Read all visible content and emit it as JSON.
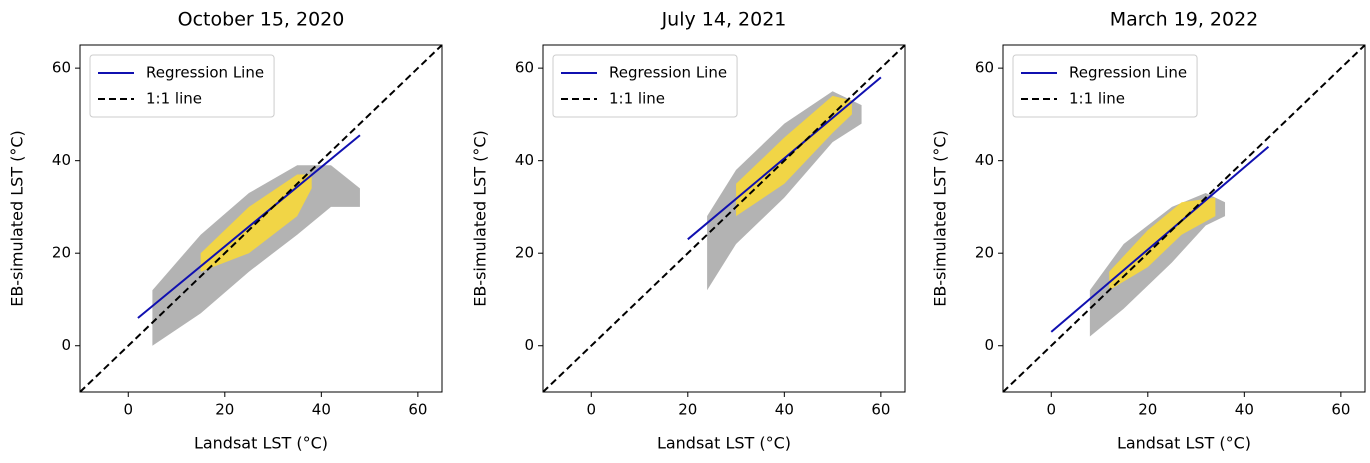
{
  "chart_data": [
    {
      "type": "scatter",
      "title": "October 15, 2020",
      "x_label": "Landsat LST (°C)",
      "y_label": "EB-simulated LST (°C)",
      "xlim": [
        -10,
        65
      ],
      "ylim": [
        -10,
        65
      ],
      "xticks": [
        0,
        20,
        40,
        60
      ],
      "yticks": [
        0,
        20,
        40,
        60
      ],
      "legend": "upper left",
      "density": {
        "outer": {
          "color": "#9a9a9a",
          "x": [
            5,
            15,
            25,
            35,
            42,
            48
          ],
          "upper": [
            12,
            24,
            33,
            39,
            39,
            34
          ],
          "lower": [
            0,
            7,
            16,
            24,
            30,
            30
          ]
        },
        "core": {
          "color": "#f7d83a",
          "x": [
            15,
            25,
            35,
            38
          ],
          "upper": [
            20,
            30,
            37,
            37
          ],
          "lower": [
            16,
            20,
            28,
            34
          ]
        }
      },
      "series": [
        {
          "name": "Regression Line",
          "color": "#1010b0",
          "linestyle": "solid",
          "x": [
            2,
            48
          ],
          "values": [
            6,
            45.5
          ]
        },
        {
          "name": "1:1 line",
          "color": "#000000",
          "linestyle": "dashed",
          "x": [
            -10,
            65
          ],
          "values": [
            -10,
            65
          ]
        }
      ]
    },
    {
      "type": "scatter",
      "title": "July 14, 2021",
      "x_label": "Landsat LST (°C)",
      "y_label": "EB-simulated LST (°C)",
      "xlim": [
        -10,
        65
      ],
      "ylim": [
        -10,
        65
      ],
      "xticks": [
        0,
        20,
        40,
        60
      ],
      "yticks": [
        0,
        20,
        40,
        60
      ],
      "legend": "upper left",
      "density": {
        "outer": {
          "color": "#9a9a9a",
          "x": [
            24,
            30,
            40,
            50,
            56
          ],
          "upper": [
            28,
            38,
            48,
            55,
            52
          ],
          "lower": [
            12,
            22,
            32,
            44,
            48
          ]
        },
        "core": {
          "color": "#f7d83a",
          "x": [
            30,
            40,
            50,
            54
          ],
          "upper": [
            35,
            45,
            54,
            53
          ],
          "lower": [
            28,
            35,
            46,
            50
          ]
        }
      },
      "series": [
        {
          "name": "Regression Line",
          "color": "#1010b0",
          "linestyle": "solid",
          "x": [
            20,
            60
          ],
          "values": [
            23,
            58
          ]
        },
        {
          "name": "1:1 line",
          "color": "#000000",
          "linestyle": "dashed",
          "x": [
            -10,
            65
          ],
          "values": [
            -10,
            65
          ]
        }
      ]
    },
    {
      "type": "scatter",
      "title": "March 19, 2022",
      "x_label": "Landsat LST (°C)",
      "y_label": "EB-simulated LST (°C)",
      "xlim": [
        -10,
        65
      ],
      "ylim": [
        -10,
        65
      ],
      "xticks": [
        0,
        20,
        40,
        60
      ],
      "yticks": [
        0,
        20,
        40,
        60
      ],
      "legend": "upper left",
      "density": {
        "outer": {
          "color": "#9a9a9a",
          "x": [
            8,
            15,
            25,
            32,
            36
          ],
          "upper": [
            12,
            22,
            30,
            33,
            31
          ],
          "lower": [
            2,
            8,
            18,
            26,
            28
          ]
        },
        "core": {
          "color": "#f7d83a",
          "x": [
            12,
            20,
            27,
            34
          ],
          "upper": [
            16,
            25,
            31,
            32
          ],
          "lower": [
            12,
            17,
            24,
            28
          ]
        }
      },
      "series": [
        {
          "name": "Regression Line",
          "color": "#1010b0",
          "linestyle": "solid",
          "x": [
            0,
            45
          ],
          "values": [
            3,
            43
          ]
        },
        {
          "name": "1:1 line",
          "color": "#000000",
          "linestyle": "dashed",
          "x": [
            -10,
            65
          ],
          "values": [
            -10,
            65
          ]
        }
      ]
    }
  ]
}
